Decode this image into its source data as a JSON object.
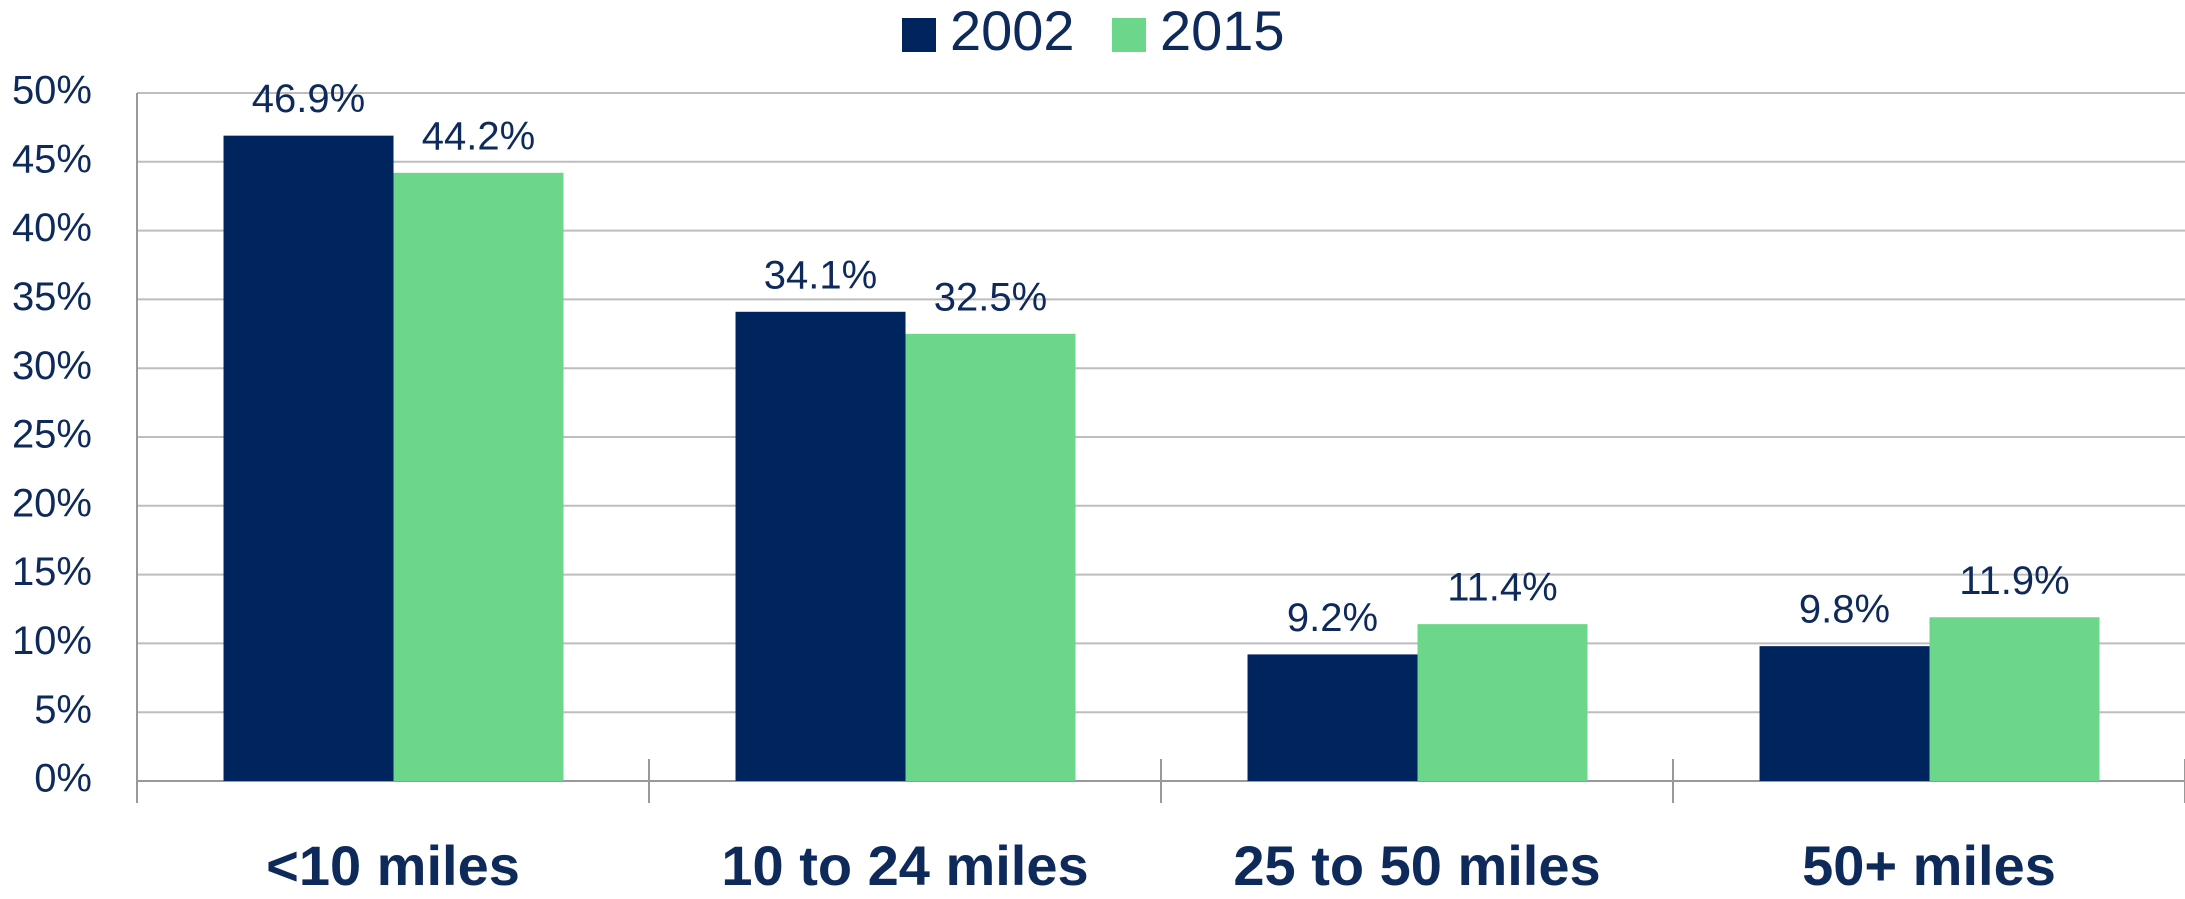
{
  "chart_data": {
    "type": "bar",
    "categories": [
      "<10 miles",
      "10 to 24 miles",
      "25 to 50 miles",
      "50+ miles"
    ],
    "series": [
      {
        "name": "2002",
        "color": "#00245d",
        "values": [
          46.9,
          34.1,
          9.2,
          9.8
        ],
        "value_labels": [
          "46.9%",
          "34.1%",
          "9.2%",
          "9.8%"
        ]
      },
      {
        "name": "2015",
        "color": "#6cd68a",
        "values": [
          44.2,
          32.5,
          11.4,
          11.9
        ],
        "value_labels": [
          "44.2%",
          "32.5%",
          "11.4%",
          "11.9%"
        ]
      }
    ],
    "ylim": [
      0,
      50
    ],
    "yticks": [
      {
        "value": 0,
        "label": "0%"
      },
      {
        "value": 5,
        "label": "5%"
      },
      {
        "value": 10,
        "label": "10%"
      },
      {
        "value": 15,
        "label": "15%"
      },
      {
        "value": 20,
        "label": "20%"
      },
      {
        "value": 25,
        "label": "25%"
      },
      {
        "value": 30,
        "label": "30%"
      },
      {
        "value": 35,
        "label": "35%"
      },
      {
        "value": 40,
        "label": "40%"
      },
      {
        "value": 45,
        "label": "45%"
      },
      {
        "value": 50,
        "label": "50%"
      }
    ],
    "grid": true,
    "legend": "top"
  }
}
